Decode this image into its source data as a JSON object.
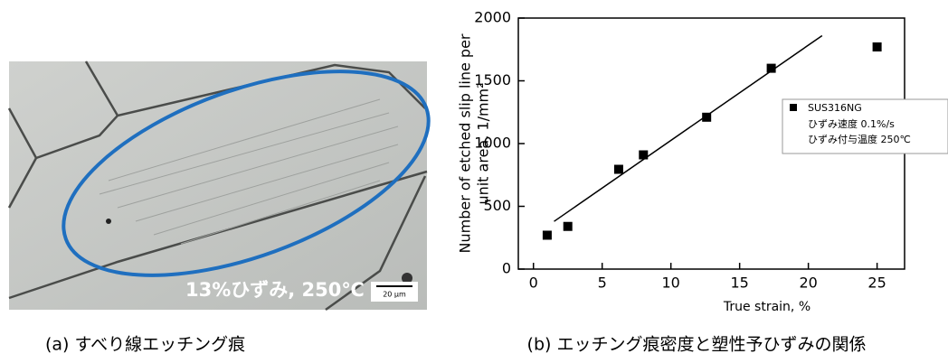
{
  "micrograph": {
    "annotation": "13%ひずみ, 250℃",
    "scale_bar": "20 μm",
    "caption": "(a) すべり線エッチング痕"
  },
  "chart_data": {
    "type": "scatter",
    "caption": "(b) エッチング痕密度と塑性予ひずみの関係",
    "xlabel": "True strain, %",
    "ylabel": [
      "Number of etched slip line per",
      "unit area, 1/mm²"
    ],
    "xlim": [
      -1.1,
      27
    ],
    "xticks": [
      0,
      5,
      10,
      15,
      20,
      25
    ],
    "ylim": [
      0,
      2000
    ],
    "yticks": [
      0,
      500,
      1000,
      1500,
      2000
    ],
    "series": [
      {
        "name": "SUS316NG",
        "color": "#000000",
        "x": [
          1,
          2.5,
          6.2,
          8,
          12.6,
          17.3,
          25
        ],
        "values": [
          270,
          340,
          795,
          910,
          1210,
          1600,
          1770
        ]
      }
    ],
    "legend_notes": [
      "ひずみ速度  0.1%/s",
      "ひずみ付与温度  250℃"
    ],
    "fit_line": {
      "x": [
        1.5,
        21
      ],
      "values": [
        380,
        1860
      ],
      "color": "#000000"
    }
  }
}
